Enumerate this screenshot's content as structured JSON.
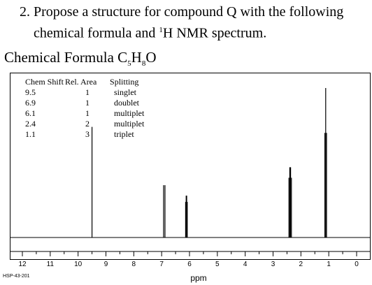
{
  "question": {
    "line1": "2. Propose a structure for compound Q with the following",
    "line2_pre": "chemical formula and ",
    "line2_sup": "1",
    "line2_post": "H NMR spectrum."
  },
  "formula": {
    "label": "Chemical Formula C",
    "c": "5",
    "h_label": "H",
    "h": "8",
    "o_label": "O"
  },
  "table": {
    "headers": [
      "Chem Shift",
      "Rel. Area",
      "Splitting"
    ],
    "rows": [
      [
        "9.5",
        "1",
        "singlet"
      ],
      [
        "6.9",
        "1",
        "doublet"
      ],
      [
        "6.1",
        "1",
        "multiplet"
      ],
      [
        "2.4",
        "2",
        "multiplet"
      ],
      [
        "1.1",
        "3",
        "triplet"
      ]
    ]
  },
  "footer": "HSP-43-201",
  "chart_data": {
    "type": "line",
    "xlabel": "ppm",
    "xlim": [
      12,
      0
    ],
    "xticks": [
      "12",
      "11",
      "10",
      "9",
      "8",
      "7",
      "6",
      "5",
      "4",
      "3",
      "2",
      "1",
      "0"
    ],
    "peaks": [
      {
        "x": [
          9.5
        ],
        "height": 0.74
      },
      {
        "x": [
          6.93,
          6.88
        ],
        "height": 0.35
      },
      {
        "x": [
          6.14,
          6.12,
          6.1,
          6.08
        ],
        "height": 0.28
      },
      {
        "x": [
          2.43,
          2.4,
          2.37,
          2.34
        ],
        "height": 0.47
      },
      {
        "x": [
          1.14,
          1.11,
          1.08
        ],
        "height": 1.0
      }
    ],
    "grid": false
  }
}
